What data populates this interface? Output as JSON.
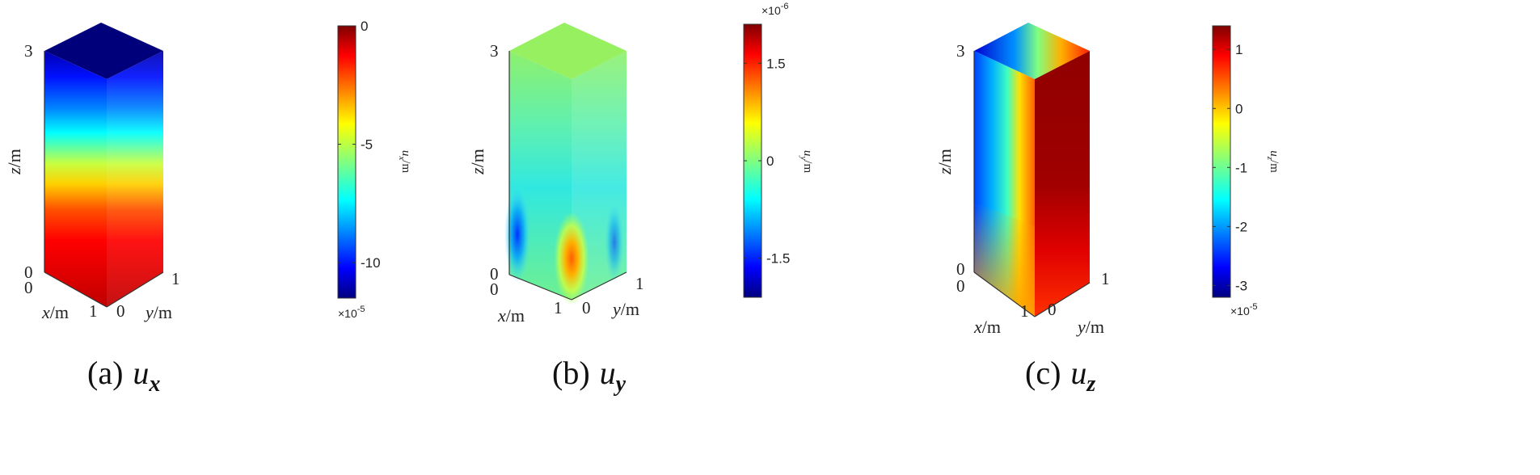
{
  "chart_data": [
    {
      "type": "heatmap",
      "id": "ux",
      "caption_label": "(a)",
      "caption_var": "u",
      "caption_sub": "x",
      "axes": {
        "x": {
          "var": "x",
          "unit": "/m",
          "ticks": [
            "0",
            "1"
          ]
        },
        "y": {
          "var": "y",
          "unit": "/m",
          "ticks": [
            "0",
            "1"
          ]
        },
        "z": {
          "var": "z",
          "unit": "/m",
          "ticks": [
            "0",
            "3"
          ]
        }
      },
      "colorbar": {
        "label_var": "u",
        "label_sub": "x",
        "label_unit": "/m",
        "range": [
          -11.5,
          0
        ],
        "ticks": [
          "0",
          "-5",
          "-10"
        ],
        "tick_values": [
          0,
          -5,
          -10
        ],
        "exponent_base": "×10",
        "exponent": "-5",
        "exponent_position": "bottom",
        "colormap": "jet"
      }
    },
    {
      "type": "heatmap",
      "id": "uy",
      "caption_label": "(b)",
      "caption_var": "u",
      "caption_sub": "y",
      "axes": {
        "x": {
          "var": "x",
          "unit": "/m",
          "ticks": [
            "0",
            "1"
          ]
        },
        "y": {
          "var": "y",
          "unit": "/m",
          "ticks": [
            "0",
            "1"
          ]
        },
        "z": {
          "var": "z",
          "unit": "/m",
          "ticks": [
            "0",
            "3"
          ]
        }
      },
      "colorbar": {
        "label_var": "u",
        "label_sub": "y",
        "label_unit": "/m",
        "range": [
          -2.1,
          2.1
        ],
        "ticks": [
          "1.5",
          "0",
          "-1.5"
        ],
        "tick_values": [
          1.5,
          0,
          -1.5
        ],
        "exponent_base": "×10",
        "exponent": "-6",
        "exponent_position": "top",
        "colormap": "jet"
      }
    },
    {
      "type": "heatmap",
      "id": "uz",
      "caption_label": "(c)",
      "caption_var": "u",
      "caption_sub": "z",
      "axes": {
        "x": {
          "var": "x",
          "unit": "/m",
          "ticks": [
            "0",
            "1"
          ]
        },
        "y": {
          "var": "y",
          "unit": "/m",
          "ticks": [
            "0",
            "1"
          ]
        },
        "z": {
          "var": "z",
          "unit": "/m",
          "ticks": [
            "0",
            "3"
          ]
        }
      },
      "colorbar": {
        "label_var": "u",
        "label_sub": "z",
        "label_unit": "/m",
        "range": [
          -3.2,
          1.4
        ],
        "ticks": [
          "1",
          "0",
          "-1",
          "-2",
          "-3"
        ],
        "tick_values": [
          1,
          0,
          -1,
          -2,
          -3
        ],
        "exponent_base": "×10",
        "exponent": "-5",
        "exponent_position": "bottom",
        "colormap": "jet"
      }
    }
  ]
}
